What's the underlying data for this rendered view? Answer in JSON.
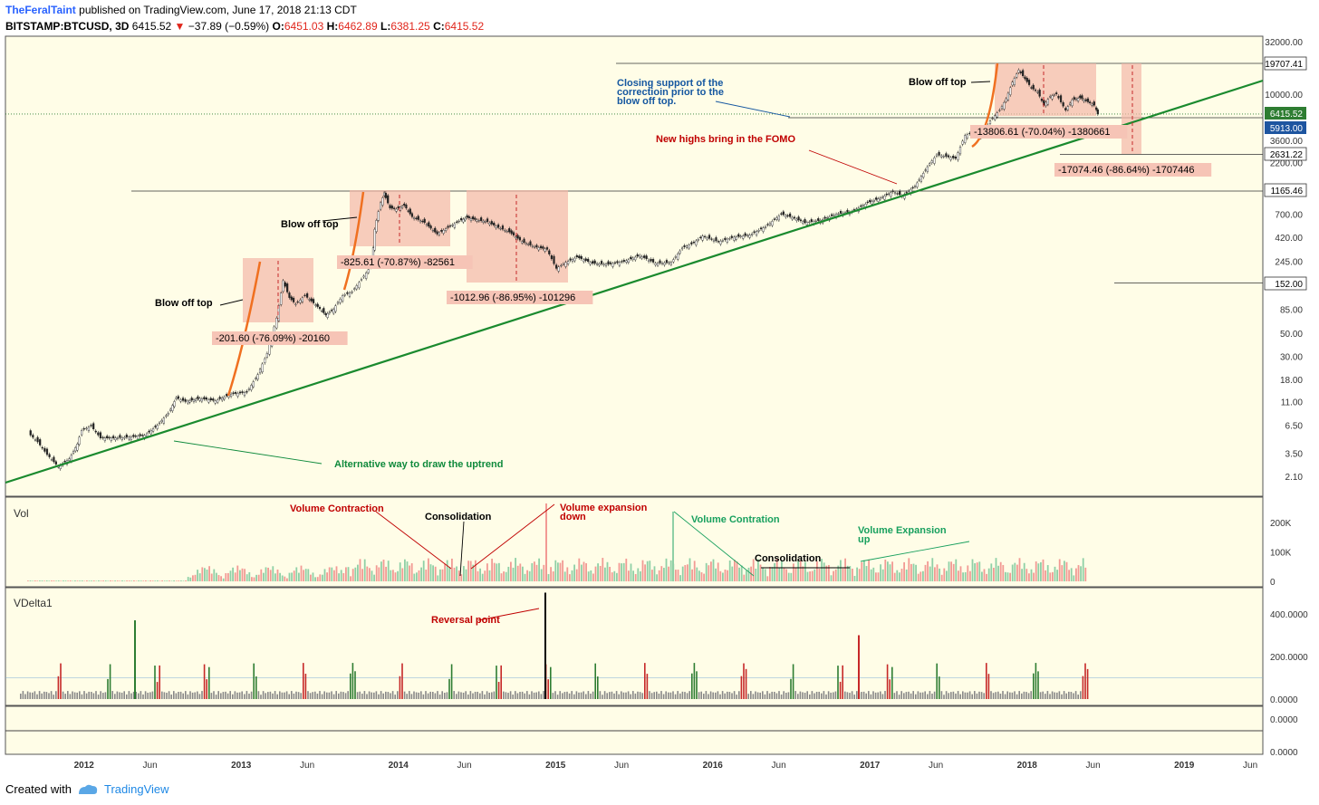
{
  "header": {
    "author": "TheFeralTaint",
    "published": "published on TradingView.com, June 17, 2018 21:13 CDT",
    "symbol": "BITSTAMP:BTCUSD, 3D",
    "last": "6415.52",
    "change": "−37.89 (−0.59%)",
    "o_label": "O:",
    "o": "6451.03",
    "h_label": "H:",
    "h": "6462.89",
    "l_label": "L:",
    "l": "6381.25",
    "c_label": "C:",
    "c": "6415.52"
  },
  "footer": {
    "created_with": "Created with",
    "brand": "TradingView"
  },
  "colors": {
    "bg": "#fffde7",
    "up": "#2e7d32",
    "down": "#c62828",
    "trend": "#1a8a2e",
    "box": "#f4b6a8",
    "annot_red": "#c00000",
    "annot_green": "#18a05e",
    "annot_blue": "#1557a0"
  },
  "chart_data": [
    {
      "type": "candlestick",
      "title": "BITSTAMP:BTCUSD, 3D",
      "y_scale": "log",
      "x_ticks": [
        "2012",
        "Jun",
        "2013",
        "Jun",
        "2014",
        "Jun",
        "2015",
        "Jun",
        "2016",
        "Jun",
        "2017",
        "Jun",
        "2018",
        "Jun",
        "2019",
        "Jun"
      ],
      "y_ticks": [
        "32000.00",
        "10000.00",
        "3600.00",
        "2200.00",
        "700.00",
        "420.00",
        "245.00",
        "85.00",
        "50.00",
        "30.00",
        "18.00",
        "11.00",
        "6.50",
        "3.50",
        "2.10"
      ],
      "price_labels": [
        "19707.41",
        "6415.52",
        "5913.00",
        "2631.22",
        "1165.46",
        "152.00"
      ],
      "series": [
        {
          "points": [
            [
              2011.66,
              5.5
            ],
            [
              2011.72,
              4.5
            ],
            [
              2011.78,
              3.4
            ],
            [
              2011.85,
              2.6
            ],
            [
              2011.92,
              3.1
            ],
            [
              2011.97,
              4.3
            ],
            [
              2012.0,
              5.8
            ],
            [
              2012.06,
              6.4
            ],
            [
              2012.12,
              4.9
            ],
            [
              2012.2,
              4.9
            ],
            [
              2012.3,
              5.0
            ],
            [
              2012.4,
              5.2
            ],
            [
              2012.48,
              6.5
            ],
            [
              2012.55,
              8.5
            ],
            [
              2012.6,
              12.0
            ],
            [
              2012.66,
              11.0
            ],
            [
              2012.75,
              11.8
            ],
            [
              2012.85,
              11.2
            ],
            [
              2012.95,
              13.0
            ],
            [
              2013.05,
              13.5
            ],
            [
              2013.12,
              20
            ],
            [
              2013.18,
              32
            ],
            [
              2013.24,
              70
            ],
            [
              2013.28,
              160
            ],
            [
              2013.32,
              110
            ],
            [
              2013.36,
              95
            ],
            [
              2013.42,
              115
            ],
            [
              2013.5,
              90
            ],
            [
              2013.55,
              75
            ],
            [
              2013.6,
              85
            ],
            [
              2013.66,
              115
            ],
            [
              2013.72,
              125
            ],
            [
              2013.78,
              165
            ],
            [
              2013.84,
              220
            ],
            [
              2013.86,
              500
            ],
            [
              2013.9,
              900
            ],
            [
              2013.92,
              1120
            ],
            [
              2013.96,
              800
            ],
            [
              2014.0,
              780
            ],
            [
              2014.05,
              850
            ],
            [
              2014.1,
              660
            ],
            [
              2014.18,
              580
            ],
            [
              2014.26,
              450
            ],
            [
              2014.33,
              520
            ],
            [
              2014.4,
              600
            ],
            [
              2014.45,
              650
            ],
            [
              2014.5,
              620
            ],
            [
              2014.58,
              590
            ],
            [
              2014.65,
              520
            ],
            [
              2014.72,
              470
            ],
            [
              2014.8,
              380
            ],
            [
              2014.88,
              340
            ],
            [
              2014.96,
              320
            ],
            [
              2015.02,
              210
            ],
            [
              2015.08,
              240
            ],
            [
              2015.15,
              270
            ],
            [
              2015.25,
              235
            ],
            [
              2015.35,
              230
            ],
            [
              2015.45,
              245
            ],
            [
              2015.55,
              280
            ],
            [
              2015.65,
              235
            ],
            [
              2015.75,
              240
            ],
            [
              2015.82,
              330
            ],
            [
              2015.88,
              360
            ],
            [
              2015.95,
              430
            ],
            [
              2016.05,
              380
            ],
            [
              2016.15,
              420
            ],
            [
              2016.25,
              440
            ],
            [
              2016.35,
              530
            ],
            [
              2016.45,
              700
            ],
            [
              2016.52,
              650
            ],
            [
              2016.6,
              580
            ],
            [
              2016.7,
              610
            ],
            [
              2016.8,
              700
            ],
            [
              2016.9,
              740
            ],
            [
              2017.0,
              900
            ],
            [
              2017.08,
              1000
            ],
            [
              2017.16,
              1150
            ],
            [
              2017.22,
              1050
            ],
            [
              2017.3,
              1300
            ],
            [
              2017.38,
              2000
            ],
            [
              2017.44,
              2600
            ],
            [
              2017.5,
              2500
            ],
            [
              2017.56,
              2400
            ],
            [
              2017.62,
              4000
            ],
            [
              2017.68,
              4300
            ],
            [
              2017.72,
              3800
            ],
            [
              2017.78,
              5500
            ],
            [
              2017.84,
              7000
            ],
            [
              2017.88,
              9000
            ],
            [
              2017.92,
              13000
            ],
            [
              2017.96,
              17000
            ],
            [
              2018.0,
              14000
            ],
            [
              2018.04,
              11500
            ],
            [
              2018.08,
              10500
            ],
            [
              2018.12,
              7800
            ],
            [
              2018.16,
              9500
            ],
            [
              2018.2,
              10000
            ],
            [
              2018.26,
              7000
            ],
            [
              2018.3,
              8800
            ],
            [
              2018.35,
              9200
            ],
            [
              2018.4,
              8400
            ],
            [
              2018.44,
              7800
            ],
            [
              2018.46,
              6415.52
            ]
          ]
        }
      ],
      "annotations": [
        "Blow off top",
        "Blow off top",
        "Blow off top",
        "-201.60 (-76.09%) -20160",
        "-825.61 (-70.87%) -82561",
        "-1012.96 (-86.95%) -101296",
        "-13806.61 (-70.04%) -1380661",
        "-17074.46 (-86.64%) -1707446",
        "Closing support of the",
        "correctioin prior to the",
        "blow off top.",
        "New highs bring in the FOMO",
        "Alternative way to draw the uptrend"
      ]
    },
    {
      "type": "bar",
      "title": "Vol",
      "y_ticks": [
        "200K",
        "100K",
        "0"
      ],
      "annotations": [
        "Volume Contraction",
        "Consolidation",
        "Volume expansion",
        "down",
        "Volume Contration",
        "Volume Expansion",
        "up",
        "Consolidation"
      ]
    },
    {
      "type": "bar",
      "title": "VDelta1",
      "y_ticks": [
        "400.0000",
        "200.0000",
        "0.0000"
      ],
      "annotations": [
        "Reversal point"
      ]
    },
    {
      "type": "line",
      "y_ticks": [
        "0.0000",
        "0.0000"
      ]
    }
  ]
}
